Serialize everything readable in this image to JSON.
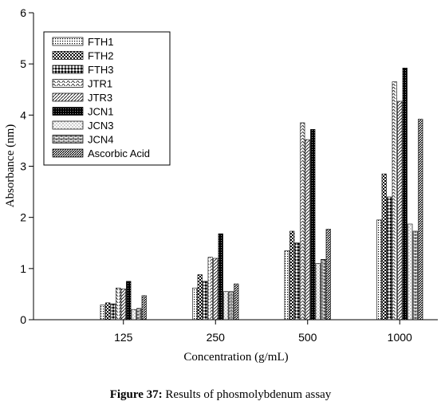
{
  "caption": {
    "label": "Figure 37:",
    "text": "Results of phosmolybdenum assay"
  },
  "chart_data": {
    "type": "bar",
    "xlabel": "Concentration (g/mL)",
    "ylabel": "Absorbance (nm)",
    "ylim": [
      0,
      6
    ],
    "yticks": [
      "0",
      "1",
      "2",
      "3",
      "4",
      "5",
      "6"
    ],
    "categories": [
      "125",
      "250",
      "500",
      "1000"
    ],
    "legend_position": "top-left",
    "grid": false,
    "series": [
      {
        "name": "FTH1",
        "pattern": "dots-fine",
        "values": [
          0.29,
          0.62,
          1.35,
          1.95
        ]
      },
      {
        "name": "FTH2",
        "pattern": "checker",
        "values": [
          0.33,
          0.88,
          1.73,
          2.85
        ]
      },
      {
        "name": "FTH3",
        "pattern": "diamonds",
        "values": [
          0.31,
          0.75,
          1.5,
          2.4
        ]
      },
      {
        "name": "JTR1",
        "pattern": "waves",
        "values": [
          0.62,
          1.22,
          3.85,
          4.65
        ]
      },
      {
        "name": "JTR3",
        "pattern": "diag",
        "values": [
          0.6,
          1.2,
          3.52,
          4.27
        ]
      },
      {
        "name": "JCN1",
        "pattern": "dark",
        "values": [
          0.75,
          1.68,
          3.72,
          4.92
        ]
      },
      {
        "name": "JCN3",
        "pattern": "dots-sparse",
        "values": [
          0.2,
          0.55,
          1.1,
          1.87
        ]
      },
      {
        "name": "JCN4",
        "pattern": "bricks",
        "values": [
          0.22,
          0.55,
          1.18,
          1.73
        ]
      },
      {
        "name": "Ascorbic Acid",
        "pattern": "hatch-dense",
        "values": [
          0.47,
          0.7,
          1.77,
          3.92
        ]
      }
    ]
  }
}
